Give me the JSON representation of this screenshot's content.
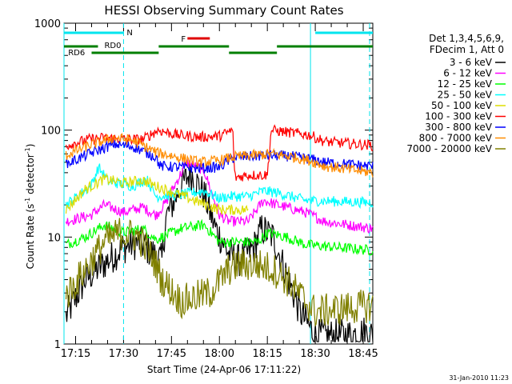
{
  "chart_data": {
    "type": "line",
    "title": "HESSI Observing Summary Count Rates",
    "xlabel": "Start Time (24-Apr-06 17:11:22)",
    "ylabel_main": "Count Rate (s",
    "ylabel_sup1": "-1",
    "ylabel_mid": " detector",
    "ylabel_sup2": "-1",
    "ylabel_end": ")",
    "yscale": "log",
    "ylim": [
      1,
      1000
    ],
    "xlim": [
      "17:11:22",
      "18:48:00"
    ],
    "x_tick_labels": [
      "17:15",
      "17:30",
      "17:45",
      "18:00",
      "18:15",
      "18:30",
      "18:45"
    ],
    "y_tick_labels": [
      "1",
      "10",
      "100",
      "1000"
    ],
    "grid": false,
    "legend_position": "right",
    "legend_header": [
      "Det 1,3,4,5,6,9,",
      "FDecim 1, Att 0"
    ],
    "timestamp": "31-Jan-2010 11:23",
    "flag_bars": [
      {
        "label": "N",
        "color": "#00e5ee",
        "segments": [
          [
            "17:11:22",
            "17:30:00"
          ],
          [
            "18:30:00",
            "18:48:00"
          ]
        ]
      },
      {
        "label": "F",
        "color": "#e00000",
        "segments": [
          [
            "17:50:00",
            "17:57:00"
          ]
        ]
      },
      {
        "label": "RD0",
        "color": "#007f00",
        "segments": [
          [
            "17:11:22",
            "17:22:00"
          ],
          [
            "17:41:00",
            "18:03:00"
          ],
          [
            "18:18:00",
            "18:48:00"
          ]
        ]
      },
      {
        "label": "RD6",
        "color": "#007f00",
        "segments": [
          [
            "17:20:00",
            "17:41:00"
          ],
          [
            "18:03:00",
            "18:18:00"
          ]
        ]
      }
    ],
    "cyan_markers": [
      {
        "time": "17:11:22",
        "style": "solid"
      },
      {
        "time": "17:30:00",
        "style": "dashed"
      },
      {
        "time": "18:28:30",
        "style": "solid"
      },
      {
        "time": "18:47:00",
        "style": "dashed"
      }
    ],
    "series": [
      {
        "name": "3 - 6 keV",
        "color": "#000000",
        "key": [
          [
            17.2,
            1.8
          ],
          [
            17.3,
            4
          ],
          [
            17.5,
            8
          ],
          [
            17.58,
            9
          ],
          [
            17.7,
            6
          ],
          [
            17.72,
            15
          ],
          [
            17.8,
            30
          ],
          [
            17.85,
            40
          ],
          [
            17.92,
            25
          ],
          [
            17.98,
            12
          ],
          [
            18.05,
            7
          ],
          [
            18.1,
            6
          ],
          [
            18.18,
            8
          ],
          [
            18.22,
            12
          ],
          [
            18.28,
            10
          ],
          [
            18.34,
            5
          ],
          [
            18.42,
            2
          ],
          [
            18.5,
            1.2
          ],
          [
            18.66,
            1.2
          ],
          [
            18.76,
            1.3
          ],
          [
            18.8,
            1.2
          ]
        ]
      },
      {
        "name": "6 - 12 keV",
        "color": "#ff00ff",
        "key": [
          [
            17.2,
            14
          ],
          [
            17.33,
            16
          ],
          [
            17.4,
            20
          ],
          [
            17.5,
            17
          ],
          [
            17.6,
            19
          ],
          [
            17.67,
            16
          ],
          [
            17.72,
            21
          ],
          [
            17.83,
            50
          ],
          [
            17.92,
            42
          ],
          [
            18.0,
            16
          ],
          [
            18.05,
            14
          ],
          [
            18.15,
            14
          ],
          [
            18.23,
            22
          ],
          [
            18.3,
            20
          ],
          [
            18.45,
            17
          ],
          [
            18.55,
            14
          ],
          [
            18.8,
            12
          ]
        ]
      },
      {
        "name": "12 - 25 keV",
        "color": "#00ff00",
        "key": [
          [
            17.2,
            8.5
          ],
          [
            17.3,
            10
          ],
          [
            17.4,
            13
          ],
          [
            17.5,
            11
          ],
          [
            17.6,
            12
          ],
          [
            17.67,
            9.5
          ],
          [
            17.8,
            12
          ],
          [
            17.92,
            13
          ],
          [
            18.0,
            9
          ],
          [
            18.1,
            9
          ],
          [
            18.2,
            9
          ],
          [
            18.25,
            11
          ],
          [
            18.35,
            10
          ],
          [
            18.45,
            8.5
          ],
          [
            18.8,
            7.5
          ]
        ]
      },
      {
        "name": "25 - 50 keV",
        "color": "#00ffff",
        "key": [
          [
            17.2,
            20
          ],
          [
            17.33,
            30
          ],
          [
            17.37,
            45
          ],
          [
            17.42,
            33
          ],
          [
            17.55,
            30
          ],
          [
            17.62,
            35
          ],
          [
            17.67,
            24
          ],
          [
            17.8,
            25
          ],
          [
            17.92,
            27
          ],
          [
            18.0,
            23
          ],
          [
            18.05,
            24
          ],
          [
            18.15,
            24
          ],
          [
            18.23,
            27
          ],
          [
            18.3,
            26
          ],
          [
            18.45,
            22
          ],
          [
            18.8,
            21
          ]
        ]
      },
      {
        "name": "50 - 100 keV",
        "color": "#dddd00",
        "key": [
          [
            17.2,
            18
          ],
          [
            17.3,
            28
          ],
          [
            17.4,
            35
          ],
          [
            17.5,
            32
          ],
          [
            17.6,
            34
          ],
          [
            17.67,
            30
          ],
          [
            18.0,
            18
          ],
          [
            18.05,
            18
          ],
          [
            18.15,
            18
          ]
        ]
      },
      {
        "name": "100 - 300 keV",
        "color": "#ff0000",
        "key": [
          [
            17.2,
            72
          ],
          [
            17.32,
            82
          ],
          [
            17.4,
            85
          ],
          [
            17.5,
            82
          ],
          [
            17.6,
            82
          ],
          [
            17.68,
            100
          ],
          [
            17.78,
            90
          ],
          [
            17.9,
            86
          ],
          [
            18.0,
            88
          ],
          [
            18.07,
            100
          ],
          [
            18.08,
            36
          ],
          [
            18.15,
            38
          ],
          [
            18.25,
            38
          ],
          [
            18.27,
            100
          ],
          [
            18.37,
            95
          ],
          [
            18.47,
            90
          ],
          [
            18.55,
            78
          ],
          [
            18.8,
            72
          ]
        ]
      },
      {
        "name": "300 - 800 keV",
        "color": "#0000ff",
        "key": [
          [
            17.2,
            48
          ],
          [
            17.32,
            60
          ],
          [
            17.45,
            74
          ],
          [
            17.55,
            70
          ],
          [
            17.67,
            56
          ],
          [
            17.69,
            46
          ],
          [
            17.8,
            45
          ],
          [
            17.9,
            44
          ],
          [
            18.0,
            45
          ],
          [
            18.07,
            55
          ],
          [
            18.17,
            57
          ],
          [
            18.27,
            58
          ],
          [
            18.37,
            57
          ],
          [
            18.47,
            54
          ],
          [
            18.55,
            50
          ],
          [
            18.8,
            46
          ]
        ]
      },
      {
        "name": "800 - 7000 keV",
        "color": "#ff8c00",
        "key": [
          [
            17.2,
            58
          ],
          [
            17.32,
            72
          ],
          [
            17.45,
            85
          ],
          [
            17.55,
            80
          ],
          [
            17.67,
            62
          ],
          [
            17.8,
            55
          ],
          [
            17.9,
            50
          ],
          [
            18.0,
            52
          ],
          [
            18.07,
            56
          ],
          [
            18.17,
            58
          ],
          [
            18.27,
            60
          ],
          [
            18.37,
            57
          ],
          [
            18.47,
            52
          ],
          [
            18.55,
            46
          ],
          [
            18.8,
            40
          ]
        ]
      },
      {
        "name": "7000 - 20000 keV",
        "color": "#808000",
        "key": [
          [
            17.2,
            2.8
          ],
          [
            17.3,
            5
          ],
          [
            17.4,
            9
          ],
          [
            17.48,
            11
          ],
          [
            17.58,
            10
          ],
          [
            17.66,
            6
          ],
          [
            17.7,
            4
          ],
          [
            17.8,
            2.5
          ],
          [
            17.95,
            3
          ],
          [
            18.05,
            5
          ],
          [
            18.1,
            5.5
          ],
          [
            18.2,
            5.5
          ],
          [
            18.28,
            5
          ],
          [
            18.35,
            4
          ],
          [
            18.45,
            2.5
          ],
          [
            18.5,
            2
          ],
          [
            18.8,
            2.3
          ]
        ]
      }
    ]
  }
}
